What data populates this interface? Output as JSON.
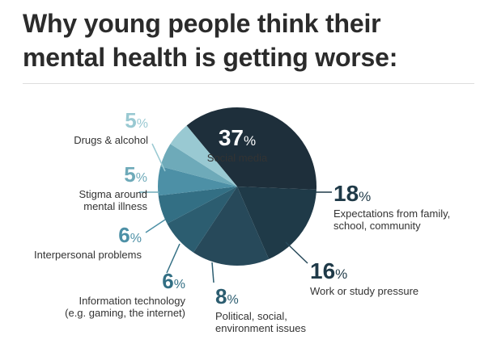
{
  "title": {
    "line1": "Why young people think their",
    "line2": "mental health is getting worse:"
  },
  "chart_data": {
    "type": "pie",
    "title": "Why young people think their mental health is getting worse:",
    "unit": "%",
    "slices": [
      {
        "id": "social-media",
        "label": [
          "Social media"
        ],
        "value": 37,
        "color": "#1e2f3b"
      },
      {
        "id": "expectations",
        "label": [
          "Expectations from family,",
          "school, community"
        ],
        "value": 18,
        "color": "#1f3a48"
      },
      {
        "id": "work-study",
        "label": [
          "Work or study pressure"
        ],
        "value": 16,
        "color": "#27495a"
      },
      {
        "id": "political",
        "label": [
          "Political, social,",
          "environment issues"
        ],
        "value": 8,
        "color": "#2c5d70"
      },
      {
        "id": "info-tech",
        "label": [
          "Information technology",
          "(e.g. gaming, the internet)"
        ],
        "value": 6,
        "color": "#336f84"
      },
      {
        "id": "interpersonal",
        "label": [
          "Interpersonal problems"
        ],
        "value": 6,
        "color": "#4d90a6"
      },
      {
        "id": "stigma",
        "label": [
          "Stigma around",
          "mental illness"
        ],
        "value": 5,
        "color": "#6eaab9"
      },
      {
        "id": "drugs-alcohol",
        "label": [
          "Drugs & alcohol"
        ],
        "value": 5,
        "color": "#99c9d2"
      }
    ]
  }
}
